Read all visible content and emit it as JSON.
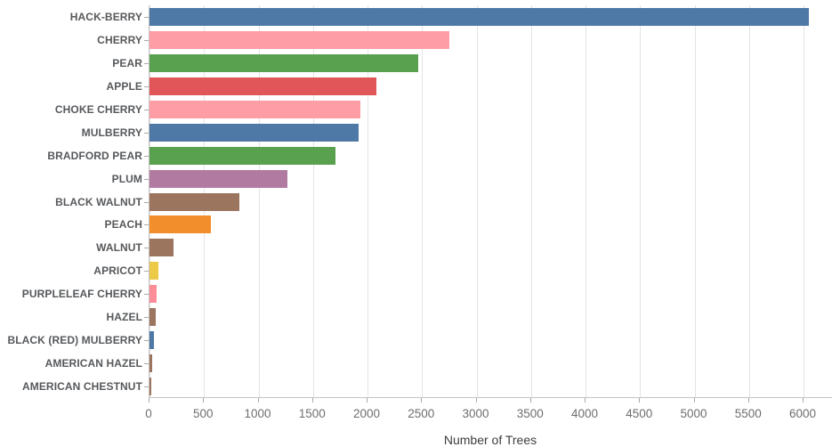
{
  "chart_data": {
    "type": "bar",
    "orientation": "horizontal",
    "title": "",
    "xlabel": "Number of Trees",
    "ylabel": "",
    "categories": [
      "HACK-BERRY",
      "CHERRY",
      "PEAR",
      "APPLE",
      "CHOKE CHERRY",
      "MULBERRY",
      "BRADFORD PEAR",
      "PLUM",
      "BLACK WALNUT",
      "PEACH",
      "WALNUT",
      "APRICOT",
      "PURPLELEAF CHERRY",
      "HAZEL",
      "BLACK (RED) MULBERRY",
      "AMERICAN HAZEL",
      "AMERICAN CHESTNUT"
    ],
    "values": [
      6050,
      2755,
      2465,
      2085,
      1935,
      1920,
      1705,
      1265,
      825,
      565,
      220,
      78,
      64,
      57,
      43,
      22,
      20
    ],
    "colors": [
      "#4e79a7",
      "#ff9da7",
      "#59a14f",
      "#e15759",
      "#ff9da7",
      "#4e79a7",
      "#59a14f",
      "#b07aa1",
      "#9c755f",
      "#f28e2b",
      "#9c755f",
      "#edc948",
      "#fc8d99",
      "#9c755f",
      "#4e79a7",
      "#9c755f",
      "#9c755f"
    ],
    "xlim": [
      0,
      6272
    ],
    "xticks": [
      0,
      500,
      1000,
      1500,
      2000,
      2500,
      3000,
      3500,
      4000,
      4500,
      5000,
      5500,
      6000
    ],
    "grid": true,
    "legend": false,
    "styles": {
      "grid_color": "#e4e4e4",
      "tick_color": "#a8a8a8",
      "axis_label_color": "#3d3d3d",
      "tick_label_color": "#6e6e6e",
      "category_label_color": "#56585b",
      "background": "#ffffff"
    }
  }
}
